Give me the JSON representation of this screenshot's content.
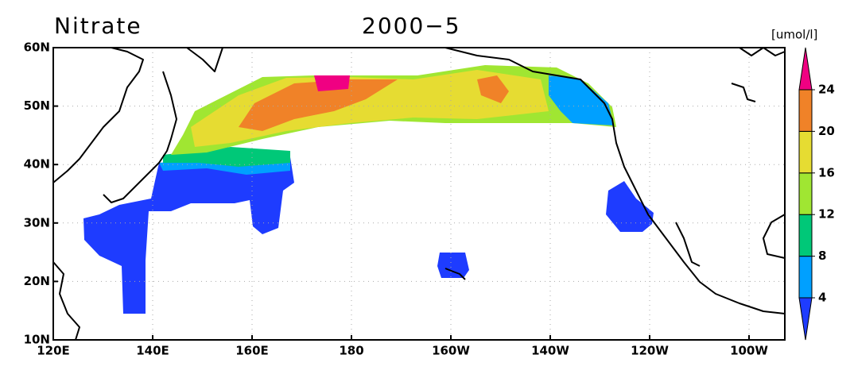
{
  "map": {
    "title": "Nitrate",
    "date": "2000−5",
    "xlim": [
      120,
      267.2
    ],
    "ylim": [
      10,
      60
    ],
    "xticks": [
      {
        "value": 120,
        "label": "120E"
      },
      {
        "value": 140,
        "label": "140E"
      },
      {
        "value": 160,
        "label": "160E"
      },
      180,
      {
        "value": 200,
        "label": "160W"
      },
      {
        "value": 220,
        "label": "140W"
      },
      {
        "value": 240,
        "label": "120W"
      },
      {
        "value": 260,
        "label": "100W"
      }
    ],
    "yticks": [
      {
        "value": 10,
        "label": "10N"
      },
      {
        "value": 20,
        "label": "20N"
      },
      {
        "value": 30,
        "label": "30N"
      },
      {
        "value": 40,
        "label": "40N"
      },
      {
        "value": 50,
        "label": "50N"
      },
      {
        "value": 60,
        "label": "60N"
      }
    ],
    "grid": true,
    "colorbar": {
      "unit": "[umol/l]",
      "levels": [
        4,
        8,
        12,
        16,
        20,
        24
      ],
      "colors": [
        "#1e3cff",
        "#00a0ff",
        "#00c878",
        "#a0e632",
        "#e6dc32",
        "#f08228",
        "#f00082"
      ]
    }
  }
}
